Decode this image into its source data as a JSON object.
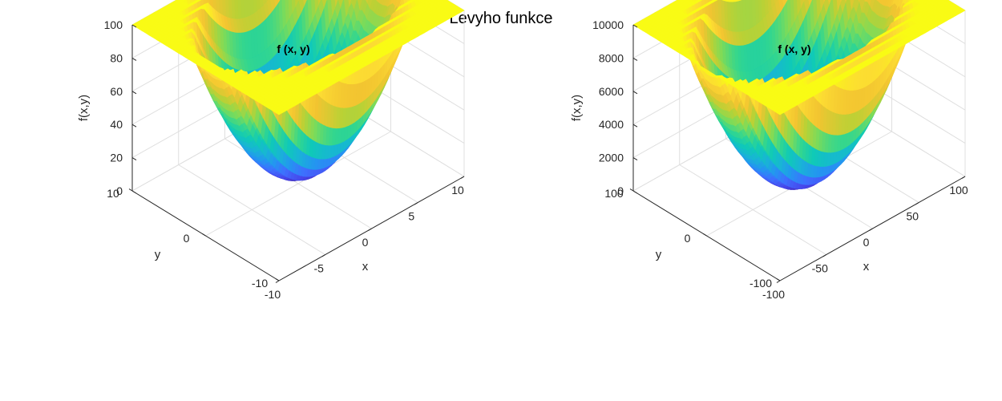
{
  "figure": {
    "title": "Levyho funkce"
  },
  "chart_data": [
    {
      "type": "surface",
      "title": "f (x, y)",
      "xlabel": "x",
      "ylabel": "y",
      "zlabel": "f(x,y)",
      "xlim": [
        -10,
        10
      ],
      "ylim": [
        -10,
        10
      ],
      "zlim": [
        0,
        100
      ],
      "xticks": [
        -10,
        -5,
        0,
        5,
        10
      ],
      "yticks": [
        -10,
        0,
        10
      ],
      "zticks": [
        0,
        20,
        40,
        60,
        80,
        100
      ],
      "xticklabels": [
        "-10",
        "-5",
        "0",
        "5",
        "10"
      ],
      "yticklabels": [
        "-10",
        "0",
        "10"
      ],
      "zticklabels": [
        "0",
        "20",
        "40",
        "60",
        "80",
        "100"
      ],
      "grid": true,
      "colormap": "parula"
    },
    {
      "type": "surface",
      "title": "f (x, y)",
      "xlabel": "x",
      "ylabel": "y",
      "zlabel": "f(x,y)",
      "xlim": [
        -100,
        100
      ],
      "ylim": [
        -100,
        100
      ],
      "zlim": [
        0,
        10000
      ],
      "xticks": [
        -100,
        -50,
        0,
        50,
        100
      ],
      "yticks": [
        -100,
        0,
        100
      ],
      "zticks": [
        0,
        2000,
        4000,
        6000,
        8000,
        10000
      ],
      "xticklabels": [
        "-100",
        "-50",
        "0",
        "50",
        "100"
      ],
      "yticklabels": [
        "-100",
        "0",
        "100"
      ],
      "zticklabels": [
        "0",
        "2000",
        "4000",
        "6000",
        "8000",
        "10000"
      ],
      "grid": true,
      "colormap": "parula"
    }
  ]
}
